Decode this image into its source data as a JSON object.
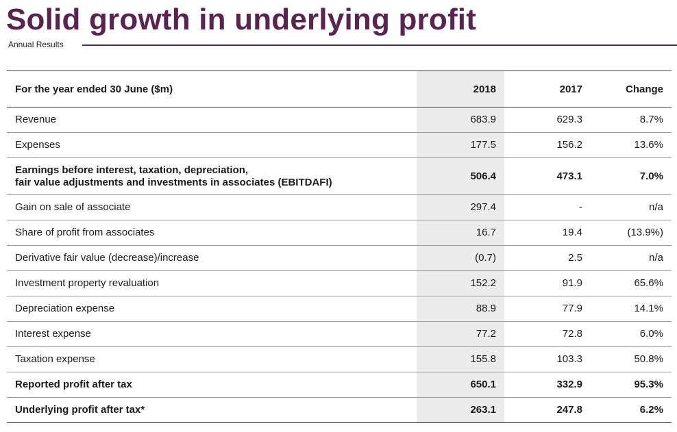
{
  "header": {
    "title": "Solid growth in underlying profit",
    "subtitle": "Annual Results"
  },
  "colors": {
    "accent": "#5a2450",
    "column_shade": "#ececec"
  },
  "table": {
    "columns": {
      "label": "For the year ended 30 June ($m)",
      "y2018": "2018",
      "y2017": "2017",
      "change": "Change"
    },
    "rows": [
      {
        "label": "Revenue",
        "y2018": "683.9",
        "y2017": "629.3",
        "change": "8.7%"
      },
      {
        "label": "Expenses",
        "y2018": "177.5",
        "y2017": "156.2",
        "change": "13.6%"
      },
      {
        "label_line1": "Earnings before interest, taxation, depreciation,",
        "label_line2": "fair value adjustments and investments in associates (EBITDAFI)",
        "y2018": "506.4",
        "y2017": "473.1",
        "change": "7.0%"
      },
      {
        "label": "Gain on sale of associate",
        "y2018": "297.4",
        "y2017": "-",
        "change": "n/a"
      },
      {
        "label": "Share of profit from associates",
        "y2018": "16.7",
        "y2017": "19.4",
        "change": "(13.9%)"
      },
      {
        "label": "Derivative fair value (decrease)/increase",
        "y2018": "(0.7)",
        "y2017": "2.5",
        "change": "n/a"
      },
      {
        "label": "Investment property revaluation",
        "y2018": "152.2",
        "y2017": "91.9",
        "change": "65.6%"
      },
      {
        "label": "Depreciation expense",
        "y2018": "88.9",
        "y2017": "77.9",
        "change": "14.1%"
      },
      {
        "label": "Interest expense",
        "y2018": "77.2",
        "y2017": "72.8",
        "change": "6.0%"
      },
      {
        "label": "Taxation expense",
        "y2018": "155.8",
        "y2017": "103.3",
        "change": "50.8%"
      },
      {
        "label": "Reported profit after tax",
        "y2018": "650.1",
        "y2017": "332.9",
        "change": "95.3%"
      },
      {
        "label": "Underlying profit after tax*",
        "y2018": "263.1",
        "y2017": "247.8",
        "change": "6.2%"
      }
    ]
  }
}
